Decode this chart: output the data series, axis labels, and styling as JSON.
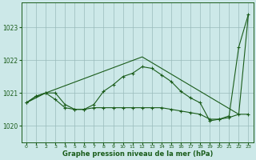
{
  "background_color": "#cce8e8",
  "grid_color": "#99bbbb",
  "line_color": "#1a5c1a",
  "xlabel": "Graphe pression niveau de la mer (hPa)",
  "xlim": [
    -0.5,
    23.5
  ],
  "ylim": [
    1019.5,
    1023.75
  ],
  "yticks": [
    1020,
    1021,
    1022,
    1023
  ],
  "xticks": [
    0,
    1,
    2,
    3,
    4,
    5,
    6,
    7,
    8,
    9,
    10,
    11,
    12,
    13,
    14,
    15,
    16,
    17,
    18,
    19,
    20,
    21,
    22,
    23
  ],
  "series1_x": [
    0,
    1,
    2,
    3,
    4,
    5,
    6,
    7,
    8,
    9,
    10,
    11,
    12,
    13,
    14,
    15,
    16,
    17,
    18,
    19,
    20,
    21,
    22,
    23
  ],
  "series1_y": [
    1020.7,
    1020.9,
    1021.0,
    1021.0,
    1020.65,
    1020.5,
    1020.5,
    1020.65,
    1021.05,
    1021.25,
    1021.5,
    1021.6,
    1021.8,
    1021.75,
    1021.55,
    1021.35,
    1021.05,
    1020.85,
    1020.7,
    1020.15,
    1020.2,
    1020.3,
    1022.4,
    1023.4
  ],
  "series2_x": [
    0,
    1,
    2,
    3,
    4,
    5,
    6,
    7,
    8,
    9,
    10,
    11,
    12,
    13,
    14,
    15,
    16,
    17,
    18,
    19,
    20,
    21,
    22,
    23
  ],
  "series2_y": [
    1020.7,
    1020.9,
    1021.0,
    1020.8,
    1020.55,
    1020.5,
    1020.5,
    1020.55,
    1020.55,
    1020.55,
    1020.55,
    1020.55,
    1020.55,
    1020.55,
    1020.55,
    1020.5,
    1020.45,
    1020.4,
    1020.35,
    1020.2,
    1020.2,
    1020.25,
    1020.35,
    1020.35
  ],
  "series3_x": [
    0,
    2,
    12,
    22,
    23
  ],
  "series3_y": [
    1020.7,
    1021.0,
    1022.1,
    1020.35,
    1023.4
  ]
}
